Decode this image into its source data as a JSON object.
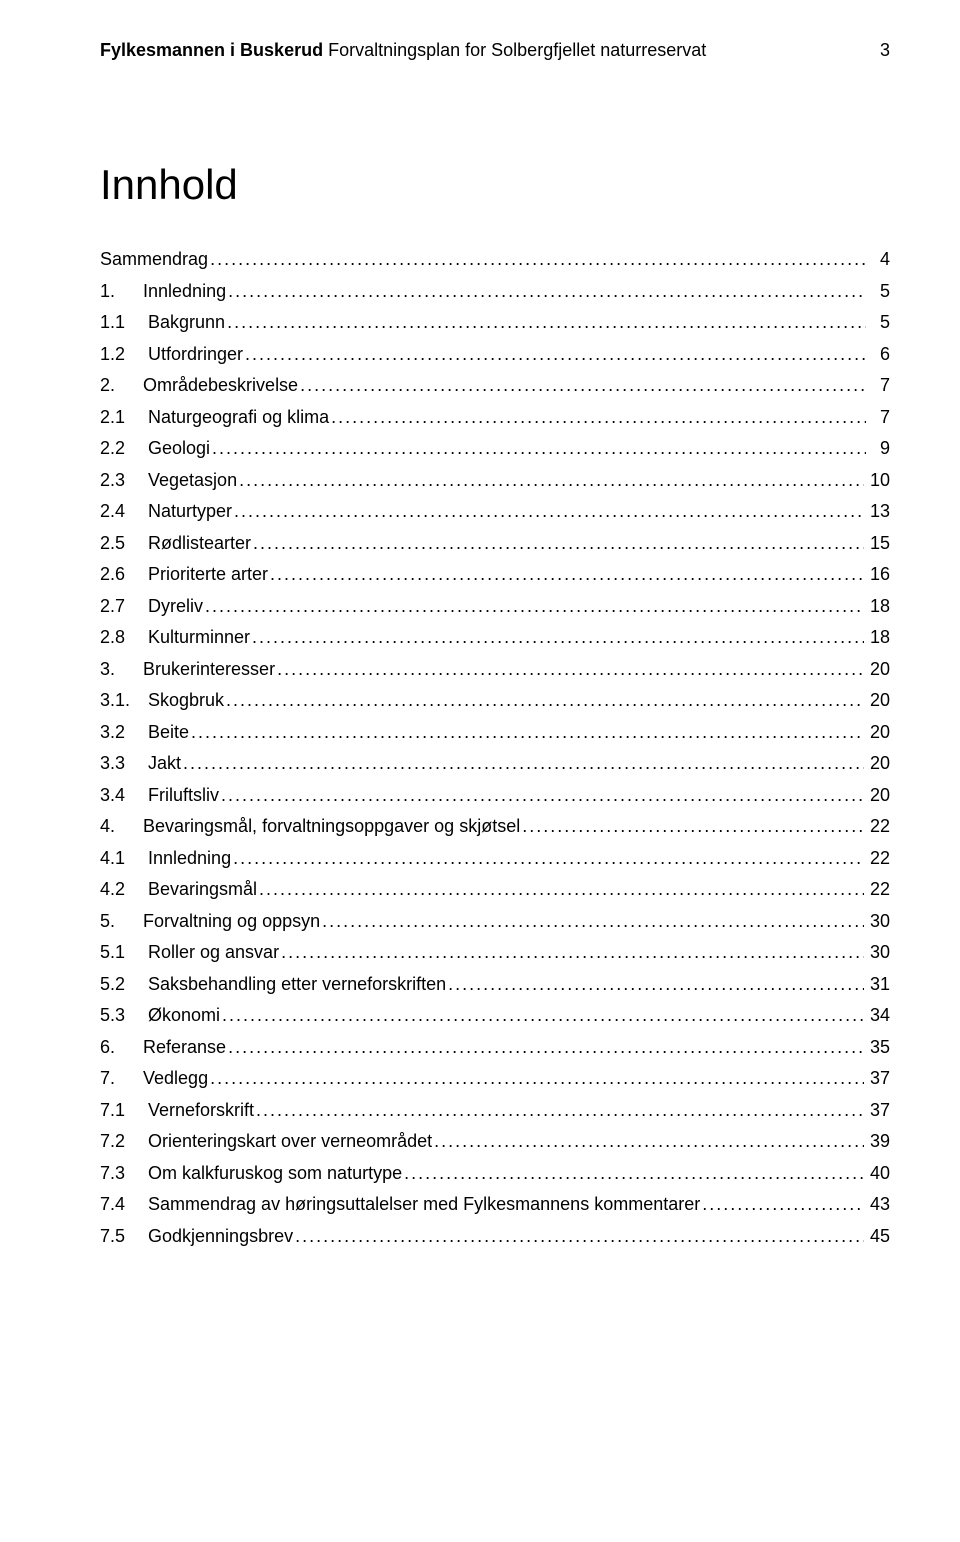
{
  "header": {
    "bold_part": "Fylkesmannen i Buskerud",
    "regular_part": " Forvaltningsplan for Solbergfjellet naturreservat",
    "page_number": "3"
  },
  "title": "Innhold",
  "toc": [
    {
      "num": "",
      "label": "Sammendrag",
      "page": "4",
      "level": 0,
      "noindent": true
    },
    {
      "num": "1.",
      "label": "Innledning",
      "page": "5",
      "level": 0
    },
    {
      "num": "1.1",
      "label": "Bakgrunn",
      "page": "5",
      "level": 1
    },
    {
      "num": "1.2",
      "label": "Utfordringer",
      "page": "6",
      "level": 1
    },
    {
      "num": "2.",
      "label": "Områdebeskrivelse",
      "page": "7",
      "level": 0
    },
    {
      "num": "2.1",
      "label": "Naturgeografi og klima",
      "page": "7",
      "level": 1
    },
    {
      "num": "2.2",
      "label": "Geologi",
      "page": "9",
      "level": 1
    },
    {
      "num": "2.3",
      "label": "Vegetasjon",
      "page": "10",
      "level": 1
    },
    {
      "num": "2.4",
      "label": "Naturtyper",
      "page": "13",
      "level": 1
    },
    {
      "num": "2.5",
      "label": "Rødlistearter",
      "page": "15",
      "level": 1
    },
    {
      "num": "2.6",
      "label": "Prioriterte arter",
      "page": "16",
      "level": 1
    },
    {
      "num": "2.7",
      "label": "Dyreliv",
      "page": "18",
      "level": 1
    },
    {
      "num": "2.8",
      "label": "Kulturminner",
      "page": "18",
      "level": 1
    },
    {
      "num": "3.",
      "label": "Brukerinteresser",
      "page": "20",
      "level": 0
    },
    {
      "num": "3.1.",
      "label": "Skogbruk",
      "page": "20",
      "level": 1
    },
    {
      "num": "3.2",
      "label": "Beite",
      "page": "20",
      "level": 1
    },
    {
      "num": "3.3",
      "label": "Jakt",
      "page": "20",
      "level": 1
    },
    {
      "num": "3.4",
      "label": "Friluftsliv",
      "page": "20",
      "level": 1
    },
    {
      "num": "4.",
      "label": "Bevaringsmål, forvaltningsoppgaver og skjøtsel",
      "page": "22",
      "level": 0
    },
    {
      "num": "4.1",
      "label": "Innledning",
      "page": "22",
      "level": 1
    },
    {
      "num": "4.2",
      "label": "Bevaringsmål",
      "page": "22",
      "level": 1
    },
    {
      "num": "5.",
      "label": "Forvaltning og oppsyn",
      "page": "30",
      "level": 0
    },
    {
      "num": "5.1",
      "label": "Roller og ansvar",
      "page": "30",
      "level": 1
    },
    {
      "num": "5.2",
      "label": "Saksbehandling etter verneforskriften",
      "page": "31",
      "level": 1
    },
    {
      "num": "5.3",
      "label": "Økonomi",
      "page": "34",
      "level": 1
    },
    {
      "num": "6.",
      "label": "Referanse",
      "page": "35",
      "level": 0
    },
    {
      "num": "7.",
      "label": "Vedlegg",
      "page": "37",
      "level": 0
    },
    {
      "num": "7.1",
      "label": "Verneforskrift",
      "page": "37",
      "level": 1
    },
    {
      "num": "7.2",
      "label": "Orienteringskart over verneområdet",
      "page": "39",
      "level": 1
    },
    {
      "num": "7.3",
      "label": "Om kalkfuruskog som naturtype",
      "page": "40",
      "level": 1
    },
    {
      "num": "7.4",
      "label": "Sammendrag av høringsuttalelser med Fylkesmannens kommentarer",
      "page": "43",
      "level": 1
    },
    {
      "num": "7.5",
      "label": "Godkjenningsbrev",
      "page": "45",
      "level": 1
    }
  ]
}
